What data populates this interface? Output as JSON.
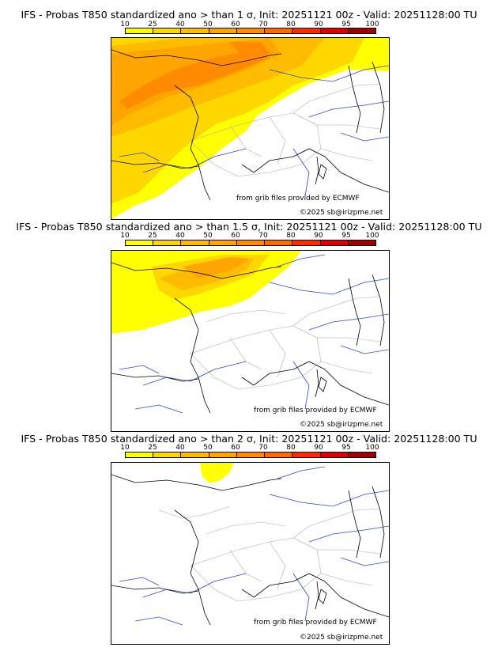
{
  "colorbar": {
    "ticks": [
      "10",
      "25",
      "40",
      "50",
      "60",
      "70",
      "80",
      "90",
      "95",
      "100"
    ],
    "colors": [
      "#ffff00",
      "#ffd700",
      "#ffbb00",
      "#ffa500",
      "#ff8c00",
      "#ff6a00",
      "#ff2a00",
      "#dd0000",
      "#a00000",
      "#500000"
    ]
  },
  "panels": [
    {
      "title": "IFS - Probas T850  standardized ano > than 1 σ, Init: 20251121 00z - Valid: 20251128:00 TU",
      "credit1": "from grib files provided by ECMWF",
      "credit2": "©2025 sb@irizpme.net"
    },
    {
      "title": "IFS - Probas T850  standardized ano > than 1.5 σ, Init: 20251121 00z - Valid: 20251128:00 TU",
      "credit1": "from grib files provided by ECMWF",
      "credit2": "©2025 sb@irizpme.net"
    },
    {
      "title": "IFS - Probas T850  standardized ano > than 2 σ, Init: 20251121 00z - Valid: 20251128:00 TU",
      "credit1": "from grib files provided by ECMWF",
      "credit2": "©2025 sb@irizpme.net"
    }
  ]
}
